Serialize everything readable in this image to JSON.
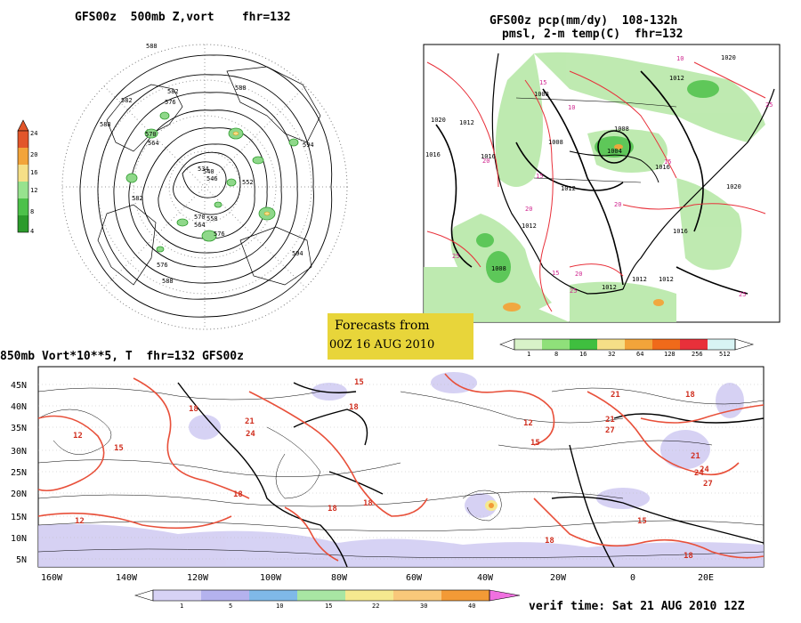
{
  "panel_tl": {
    "title": "GFS00z  500mb Z,vort    fhr=132",
    "contour_labels": [
      "588",
      "582",
      "576",
      "570",
      "564",
      "558",
      "552",
      "546",
      "540",
      "534",
      "588",
      "582",
      "576",
      "570",
      "564",
      "594",
      "594",
      "588",
      "582",
      "576",
      "588"
    ],
    "colorbar_ticks": [
      "24",
      "20",
      "16",
      "12",
      "8",
      "4"
    ],
    "colorbar_colors": [
      "#e2562a",
      "#f2a43a",
      "#f5df87",
      "#97e28e",
      "#4dc14a",
      "#2c9b2c"
    ]
  },
  "panel_tr": {
    "title_line1": "GFS00z pcp(mm/dy)  108-132h",
    "title_line2": "pmsl, 2-m temp(C)  fhr=132",
    "isobar_labels": [
      "1020",
      "1012",
      "1008",
      "1012",
      "1008",
      "1004",
      "1008",
      "1016",
      "1012",
      "1012",
      "1016",
      "1020",
      "1012",
      "1008",
      "1016",
      "1020",
      "1012",
      "1016",
      "1012"
    ],
    "temp_labels": [
      "10",
      "15",
      "20",
      "25",
      "15",
      "20",
      "25",
      "10",
      "15",
      "20",
      "25",
      "25",
      "15",
      "20"
    ],
    "colorbar_ticks": [
      "1",
      "8",
      "16",
      "32",
      "64",
      "128",
      "256",
      "512"
    ],
    "colorbar_colors": [
      "#ffffff",
      "#d8f2c8",
      "#8fe07a",
      "#3fbf3f",
      "#f5df87",
      "#f2a43a",
      "#f06a1a",
      "#e8303a",
      "#d8f4f4"
    ]
  },
  "stamp": {
    "line1": "Forecasts from",
    "line2": "00Z 16 AUG 2010"
  },
  "panel_bottom": {
    "title": "850mb Vort*10**5, T  fhr=132 GFS00z",
    "lat_labels": [
      "45N",
      "40N",
      "35N",
      "30N",
      "25N",
      "20N",
      "15N",
      "10N",
      "5N"
    ],
    "lon_labels": [
      "160W",
      "140W",
      "120W",
      "100W",
      "80W",
      "60W",
      "40W",
      "20W",
      "0",
      "20E"
    ],
    "temp_labels": [
      "18",
      "21",
      "24",
      "18",
      "12",
      "15",
      "18",
      "12",
      "15",
      "18",
      "21",
      "18",
      "21",
      "24",
      "27",
      "18",
      "15",
      "12",
      "24",
      "21",
      "27",
      "18",
      "15",
      "18"
    ],
    "colorbar_ticks": [
      "1",
      "5",
      "10",
      "15",
      "22",
      "30",
      "40"
    ],
    "colorbar_colors": [
      "#ffffff",
      "#d7d2f5",
      "#b4b2ee",
      "#7fb9e8",
      "#a8e6a3",
      "#f5e98f",
      "#f9c87a",
      "#f39a36",
      "#f070e0"
    ],
    "verif_time": "verif time: Sat 21 AUG 2010 12Z"
  }
}
